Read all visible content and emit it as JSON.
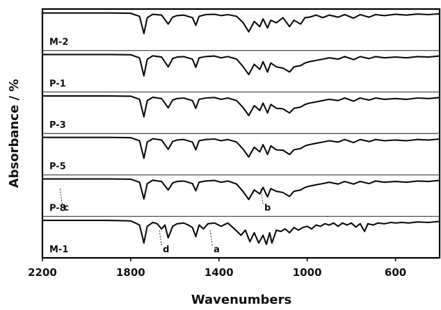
{
  "chart_data": {
    "type": "line",
    "title": "",
    "xlabel": "Wavenumbers",
    "ylabel": "Absorbance / %",
    "xlim": [
      2200,
      400
    ],
    "x_reversed": true,
    "x_ticks": [
      2200,
      1800,
      1400,
      1000,
      600
    ],
    "x_tick_labels": [
      "2200",
      "1800",
      "1400",
      "1000",
      "600"
    ],
    "grid": false,
    "legend": "none",
    "stacked": true,
    "series": [
      {
        "name": "M-2",
        "points": [
          [
            2200,
            0.02
          ],
          [
            1900,
            0.02
          ],
          [
            1800,
            0.03
          ],
          [
            1760,
            0.15
          ],
          [
            1740,
            0.82
          ],
          [
            1725,
            0.2
          ],
          [
            1700,
            0.07
          ],
          [
            1660,
            0.1
          ],
          [
            1630,
            0.45
          ],
          [
            1610,
            0.18
          ],
          [
            1590,
            0.12
          ],
          [
            1560,
            0.1
          ],
          [
            1520,
            0.2
          ],
          [
            1505,
            0.5
          ],
          [
            1490,
            0.15
          ],
          [
            1460,
            0.08
          ],
          [
            1420,
            0.07
          ],
          [
            1390,
            0.12
          ],
          [
            1360,
            0.08
          ],
          [
            1320,
            0.15
          ],
          [
            1290,
            0.4
          ],
          [
            1265,
            0.75
          ],
          [
            1240,
            0.35
          ],
          [
            1215,
            0.55
          ],
          [
            1200,
            0.25
          ],
          [
            1180,
            0.6
          ],
          [
            1165,
            0.3
          ],
          [
            1140,
            0.4
          ],
          [
            1110,
            0.2
          ],
          [
            1080,
            0.55
          ],
          [
            1060,
            0.3
          ],
          [
            1030,
            0.45
          ],
          [
            1010,
            0.2
          ],
          [
            990,
            0.18
          ],
          [
            960,
            0.1
          ],
          [
            930,
            0.2
          ],
          [
            900,
            0.1
          ],
          [
            860,
            0.18
          ],
          [
            830,
            0.08
          ],
          [
            790,
            0.22
          ],
          [
            760,
            0.08
          ],
          [
            720,
            0.18
          ],
          [
            690,
            0.08
          ],
          [
            650,
            0.12
          ],
          [
            600,
            0.07
          ],
          [
            550,
            0.1
          ],
          [
            500,
            0.06
          ],
          [
            450,
            0.08
          ],
          [
            400,
            0.05
          ]
        ]
      },
      {
        "name": "P-1",
        "points": [
          [
            2200,
            0.02
          ],
          [
            1900,
            0.02
          ],
          [
            1800,
            0.03
          ],
          [
            1760,
            0.15
          ],
          [
            1740,
            0.85
          ],
          [
            1725,
            0.2
          ],
          [
            1700,
            0.07
          ],
          [
            1660,
            0.12
          ],
          [
            1630,
            0.5
          ],
          [
            1610,
            0.18
          ],
          [
            1590,
            0.12
          ],
          [
            1560,
            0.1
          ],
          [
            1520,
            0.2
          ],
          [
            1505,
            0.52
          ],
          [
            1490,
            0.15
          ],
          [
            1460,
            0.1
          ],
          [
            1420,
            0.08
          ],
          [
            1390,
            0.15
          ],
          [
            1360,
            0.1
          ],
          [
            1320,
            0.2
          ],
          [
            1290,
            0.5
          ],
          [
            1265,
            0.8
          ],
          [
            1240,
            0.4
          ],
          [
            1215,
            0.6
          ],
          [
            1200,
            0.3
          ],
          [
            1180,
            0.7
          ],
          [
            1165,
            0.35
          ],
          [
            1140,
            0.5
          ],
          [
            1110,
            0.55
          ],
          [
            1080,
            0.7
          ],
          [
            1060,
            0.5
          ],
          [
            1030,
            0.45
          ],
          [
            1010,
            0.35
          ],
          [
            990,
            0.3
          ],
          [
            960,
            0.25
          ],
          [
            930,
            0.2
          ],
          [
            900,
            0.15
          ],
          [
            860,
            0.2
          ],
          [
            830,
            0.1
          ],
          [
            790,
            0.22
          ],
          [
            760,
            0.1
          ],
          [
            720,
            0.18
          ],
          [
            690,
            0.1
          ],
          [
            650,
            0.15
          ],
          [
            600,
            0.12
          ],
          [
            550,
            0.15
          ],
          [
            500,
            0.1
          ],
          [
            450,
            0.12
          ],
          [
            400,
            0.08
          ]
        ]
      },
      {
        "name": "P-3",
        "points": [
          [
            2200,
            0.02
          ],
          [
            1900,
            0.02
          ],
          [
            1800,
            0.03
          ],
          [
            1760,
            0.15
          ],
          [
            1740,
            0.83
          ],
          [
            1725,
            0.2
          ],
          [
            1700,
            0.07
          ],
          [
            1660,
            0.12
          ],
          [
            1630,
            0.48
          ],
          [
            1610,
            0.18
          ],
          [
            1590,
            0.12
          ],
          [
            1560,
            0.1
          ],
          [
            1520,
            0.2
          ],
          [
            1505,
            0.5
          ],
          [
            1490,
            0.15
          ],
          [
            1460,
            0.1
          ],
          [
            1420,
            0.08
          ],
          [
            1390,
            0.15
          ],
          [
            1360,
            0.1
          ],
          [
            1320,
            0.2
          ],
          [
            1290,
            0.48
          ],
          [
            1265,
            0.78
          ],
          [
            1240,
            0.4
          ],
          [
            1215,
            0.58
          ],
          [
            1200,
            0.3
          ],
          [
            1180,
            0.68
          ],
          [
            1165,
            0.35
          ],
          [
            1140,
            0.5
          ],
          [
            1110,
            0.52
          ],
          [
            1080,
            0.68
          ],
          [
            1060,
            0.5
          ],
          [
            1030,
            0.45
          ],
          [
            1010,
            0.35
          ],
          [
            990,
            0.3
          ],
          [
            960,
            0.25
          ],
          [
            930,
            0.2
          ],
          [
            900,
            0.15
          ],
          [
            860,
            0.2
          ],
          [
            830,
            0.1
          ],
          [
            790,
            0.22
          ],
          [
            760,
            0.1
          ],
          [
            720,
            0.18
          ],
          [
            690,
            0.1
          ],
          [
            650,
            0.15
          ],
          [
            600,
            0.12
          ],
          [
            550,
            0.15
          ],
          [
            500,
            0.1
          ],
          [
            450,
            0.12
          ],
          [
            400,
            0.08
          ]
        ]
      },
      {
        "name": "P-5",
        "points": [
          [
            2200,
            0.02
          ],
          [
            1900,
            0.02
          ],
          [
            1800,
            0.03
          ],
          [
            1760,
            0.15
          ],
          [
            1740,
            0.83
          ],
          [
            1725,
            0.2
          ],
          [
            1700,
            0.07
          ],
          [
            1660,
            0.12
          ],
          [
            1630,
            0.48
          ],
          [
            1610,
            0.18
          ],
          [
            1590,
            0.12
          ],
          [
            1560,
            0.1
          ],
          [
            1520,
            0.2
          ],
          [
            1505,
            0.5
          ],
          [
            1490,
            0.15
          ],
          [
            1460,
            0.1
          ],
          [
            1420,
            0.08
          ],
          [
            1390,
            0.15
          ],
          [
            1360,
            0.1
          ],
          [
            1320,
            0.2
          ],
          [
            1290,
            0.48
          ],
          [
            1265,
            0.78
          ],
          [
            1240,
            0.4
          ],
          [
            1215,
            0.58
          ],
          [
            1200,
            0.3
          ],
          [
            1180,
            0.68
          ],
          [
            1165,
            0.35
          ],
          [
            1140,
            0.5
          ],
          [
            1110,
            0.52
          ],
          [
            1080,
            0.68
          ],
          [
            1060,
            0.5
          ],
          [
            1030,
            0.45
          ],
          [
            1010,
            0.35
          ],
          [
            990,
            0.3
          ],
          [
            960,
            0.25
          ],
          [
            930,
            0.2
          ],
          [
            900,
            0.15
          ],
          [
            860,
            0.2
          ],
          [
            830,
            0.1
          ],
          [
            790,
            0.22
          ],
          [
            760,
            0.1
          ],
          [
            720,
            0.18
          ],
          [
            690,
            0.1
          ],
          [
            650,
            0.15
          ],
          [
            600,
            0.12
          ],
          [
            550,
            0.15
          ],
          [
            500,
            0.1
          ],
          [
            450,
            0.12
          ],
          [
            400,
            0.08
          ]
        ]
      },
      {
        "name": "P-8",
        "points": [
          [
            2200,
            0.02
          ],
          [
            1900,
            0.02
          ],
          [
            1800,
            0.03
          ],
          [
            1760,
            0.15
          ],
          [
            1740,
            0.8
          ],
          [
            1725,
            0.2
          ],
          [
            1700,
            0.07
          ],
          [
            1660,
            0.12
          ],
          [
            1630,
            0.45
          ],
          [
            1610,
            0.18
          ],
          [
            1590,
            0.12
          ],
          [
            1560,
            0.1
          ],
          [
            1520,
            0.2
          ],
          [
            1505,
            0.48
          ],
          [
            1490,
            0.15
          ],
          [
            1460,
            0.1
          ],
          [
            1420,
            0.08
          ],
          [
            1390,
            0.15
          ],
          [
            1360,
            0.1
          ],
          [
            1320,
            0.22
          ],
          [
            1290,
            0.52
          ],
          [
            1265,
            0.82
          ],
          [
            1240,
            0.45
          ],
          [
            1215,
            0.6
          ],
          [
            1200,
            0.35
          ],
          [
            1180,
            0.72
          ],
          [
            1165,
            0.4
          ],
          [
            1140,
            0.5
          ],
          [
            1110,
            0.55
          ],
          [
            1080,
            0.7
          ],
          [
            1060,
            0.5
          ],
          [
            1030,
            0.45
          ],
          [
            1010,
            0.35
          ],
          [
            990,
            0.3
          ],
          [
            960,
            0.25
          ],
          [
            930,
            0.2
          ],
          [
            900,
            0.15
          ],
          [
            860,
            0.22
          ],
          [
            830,
            0.12
          ],
          [
            790,
            0.22
          ],
          [
            760,
            0.12
          ],
          [
            720,
            0.2
          ],
          [
            690,
            0.1
          ],
          [
            650,
            0.15
          ],
          [
            600,
            0.12
          ],
          [
            550,
            0.15
          ],
          [
            500,
            0.1
          ],
          [
            450,
            0.12
          ],
          [
            400,
            0.08
          ]
        ]
      },
      {
        "name": "M-1",
        "points": [
          [
            2200,
            0.02
          ],
          [
            1900,
            0.02
          ],
          [
            1800,
            0.04
          ],
          [
            1760,
            0.2
          ],
          [
            1740,
            0.9
          ],
          [
            1725,
            0.25
          ],
          [
            1700,
            0.1
          ],
          [
            1680,
            0.15
          ],
          [
            1660,
            0.35
          ],
          [
            1645,
            0.2
          ],
          [
            1630,
            0.7
          ],
          [
            1610,
            0.25
          ],
          [
            1590,
            0.15
          ],
          [
            1560,
            0.12
          ],
          [
            1540,
            0.2
          ],
          [
            1520,
            0.3
          ],
          [
            1505,
            0.65
          ],
          [
            1490,
            0.2
          ],
          [
            1470,
            0.35
          ],
          [
            1450,
            0.15
          ],
          [
            1420,
            0.12
          ],
          [
            1390,
            0.25
          ],
          [
            1360,
            0.12
          ],
          [
            1330,
            0.35
          ],
          [
            1300,
            0.6
          ],
          [
            1280,
            0.4
          ],
          [
            1260,
            0.85
          ],
          [
            1240,
            0.5
          ],
          [
            1220,
            0.9
          ],
          [
            1200,
            0.6
          ],
          [
            1185,
            0.95
          ],
          [
            1170,
            0.5
          ],
          [
            1160,
            0.9
          ],
          [
            1140,
            0.4
          ],
          [
            1120,
            0.45
          ],
          [
            1100,
            0.35
          ],
          [
            1080,
            0.5
          ],
          [
            1060,
            0.3
          ],
          [
            1040,
            0.4
          ],
          [
            1020,
            0.3
          ],
          [
            1000,
            0.25
          ],
          [
            980,
            0.35
          ],
          [
            960,
            0.2
          ],
          [
            940,
            0.25
          ],
          [
            920,
            0.15
          ],
          [
            900,
            0.2
          ],
          [
            880,
            0.12
          ],
          [
            860,
            0.25
          ],
          [
            840,
            0.12
          ],
          [
            820,
            0.2
          ],
          [
            800,
            0.12
          ],
          [
            780,
            0.28
          ],
          [
            760,
            0.15
          ],
          [
            740,
            0.45
          ],
          [
            725,
            0.15
          ],
          [
            700,
            0.2
          ],
          [
            680,
            0.12
          ],
          [
            650,
            0.15
          ],
          [
            620,
            0.1
          ],
          [
            600,
            0.12
          ],
          [
            570,
            0.1
          ],
          [
            540,
            0.12
          ],
          [
            500,
            0.08
          ],
          [
            450,
            0.1
          ],
          [
            400,
            0.06
          ]
        ]
      }
    ],
    "annotations": [
      {
        "text": "a",
        "near_series": "M-1",
        "x": 1440
      },
      {
        "text": "b",
        "near_series": "P-8",
        "x": 1210
      },
      {
        "text": "c",
        "near_series": "P-8",
        "x": 2120
      },
      {
        "text": "d",
        "near_series": "M-1",
        "x": 1670
      }
    ]
  }
}
